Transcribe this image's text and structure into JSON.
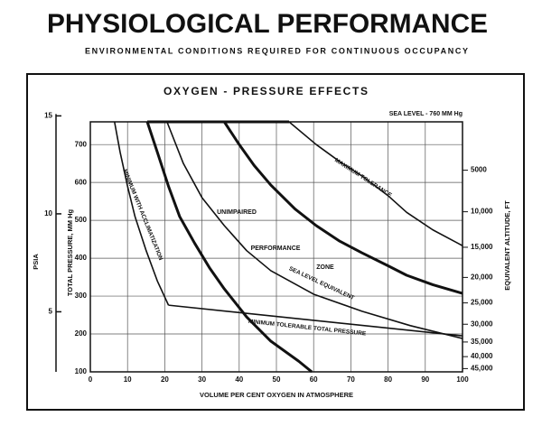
{
  "chart_data": {
    "type": "line",
    "title": "PHYSIOLOGICAL PERFORMANCE",
    "subtitle": "ENVIRONMENTAL CONDITIONS REQUIRED FOR CONTINUOUS OCCUPANCY",
    "chart_title": "OXYGEN - PRESSURE EFFECTS",
    "note": "SEA LEVEL - 760 MM Hg",
    "xlabel": "VOLUME PER CENT OXYGEN IN ATMOSPHERE",
    "ylabel": "TOTAL PRESSURE, MM Hg",
    "y2label": "EQUIVALENT ALTITUDE, FT",
    "y3label": "PSIA",
    "xlim": [
      0,
      100
    ],
    "xticks": [
      0,
      10,
      20,
      30,
      40,
      50,
      60,
      70,
      80,
      90,
      100
    ],
    "ylim": [
      100,
      760
    ],
    "yticks": [
      100,
      200,
      300,
      400,
      500,
      600,
      700
    ],
    "y2scale": "standard-atmosphere",
    "y2ticks": [
      5000,
      {
        "value": 10000,
        "label": "10,000"
      },
      {
        "value": 15000,
        "label": "15,000"
      },
      {
        "value": 20000,
        "label": "20,000"
      },
      {
        "value": 25000,
        "label": "25,000"
      },
      {
        "value": 30000,
        "label": "30,000"
      },
      {
        "value": 35000,
        "label": "35,000"
      },
      {
        "value": 40000,
        "label": "40,000"
      },
      {
        "value": 45000,
        "label": "45,000"
      }
    ],
    "y3ticks": [
      5,
      10,
      15
    ],
    "grid": true,
    "annotations": [
      "UNIMPAIRED",
      "PERFORMANCE",
      "ZONE"
    ],
    "series": [
      {
        "name": "MINIMUM WITH ACCLIMATIZATION",
        "color": "#111",
        "width": 1.6,
        "x": [
          6.5,
          8,
          10,
          12,
          15,
          18,
          21
        ],
        "values": [
          760,
          680,
          590,
          510,
          420,
          340,
          276
        ]
      },
      {
        "name": "MINIMUM TOLERABLE TOTAL PRESSURE",
        "color": "#111",
        "width": 1.6,
        "x": [
          21,
          100
        ],
        "values": [
          276,
          195
        ]
      },
      {
        "color": "#111",
        "width": 3,
        "x": [
          15.3,
          18,
          21,
          24,
          28,
          32,
          36,
          42,
          48.5,
          56,
          59.5
        ],
        "values": [
          760,
          680,
          590,
          510,
          440,
          375,
          319,
          245,
          181,
          128,
          100
        ]
      },
      {
        "name": "SEA LEVEL EQUIVALENT",
        "color": "#111",
        "width": 1.6,
        "x": [
          20.6,
          25,
          30,
          36,
          42,
          48.5,
          60,
          73,
          86,
          100
        ],
        "values": [
          760,
          650,
          560,
          486,
          420,
          367,
          305,
          260,
          222,
          188
        ]
      },
      {
        "color": "#111",
        "width": 3,
        "x": [
          36,
          40,
          44,
          48.5,
          55,
          60.7,
          67,
          73,
          80,
          85,
          92,
          100
        ],
        "values": [
          760,
          700,
          645,
          593,
          530,
          486,
          445,
          414,
          380,
          355,
          330,
          307
        ]
      },
      {
        "name": "MAXIMUM TOLERANCE",
        "color": "#111",
        "width": 1.6,
        "x": [
          53.4,
          60.7,
          67,
          73,
          80,
          85,
          92,
          100
        ],
        "values": [
          760,
          700,
          655,
          617,
          565,
          521,
          475,
          433
        ]
      },
      {
        "color": "#111",
        "width": 3,
        "x": [
          15.3,
          53.4
        ],
        "values": [
          760,
          760
        ]
      }
    ]
  }
}
